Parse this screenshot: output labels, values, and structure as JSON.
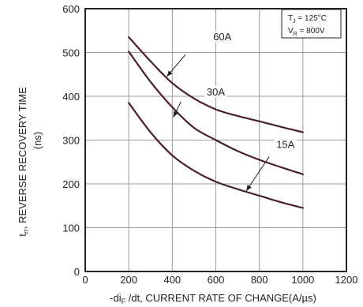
{
  "chart_data": {
    "type": "line",
    "title": "",
    "xlabel": "-di_F /dt, CURRENT RATE OF CHANGE(A/µs)",
    "xlabel_parts": {
      "pre": "-di",
      "sub": "F",
      "post": " /dt, CURRENT RATE OF CHANGE(A/µs)"
    },
    "ylabel_main": "t_rr, REVERSE RECOVERY TIME",
    "ylabel_parts": {
      "pre": "t",
      "sub": "rr",
      "post": ", REVERSE RECOVERY TIME"
    },
    "ylabel_unit": "(ns)",
    "xlim": [
      0,
      1200
    ],
    "ylim": [
      0,
      600
    ],
    "x_ticks": [
      "0",
      "200",
      "400",
      "600",
      "800",
      "1000",
      "1200"
    ],
    "y_ticks": [
      "0",
      "100",
      "200",
      "300",
      "400",
      "500",
      "600"
    ],
    "grid": true,
    "conditions": [
      {
        "pre": "T",
        "sub": "J",
        "post": " = 125°C"
      },
      {
        "pre": "V",
        "sub": "R",
        "post": " = 800V"
      }
    ],
    "series": [
      {
        "name": "60A",
        "x": [
          200,
          300,
          400,
          500,
          600,
          700,
          800,
          900,
          1000
        ],
        "y": [
          535,
          480,
          430,
          395,
          370,
          355,
          343,
          330,
          318
        ]
      },
      {
        "name": "30A",
        "x": [
          200,
          300,
          400,
          500,
          600,
          700,
          800,
          900,
          1000
        ],
        "y": [
          502,
          433,
          375,
          328,
          300,
          275,
          255,
          238,
          222
        ]
      },
      {
        "name": "15A",
        "x": [
          200,
          300,
          400,
          500,
          600,
          700,
          800,
          900,
          1000
        ],
        "y": [
          385,
          318,
          265,
          230,
          205,
          188,
          173,
          158,
          145
        ]
      }
    ]
  }
}
